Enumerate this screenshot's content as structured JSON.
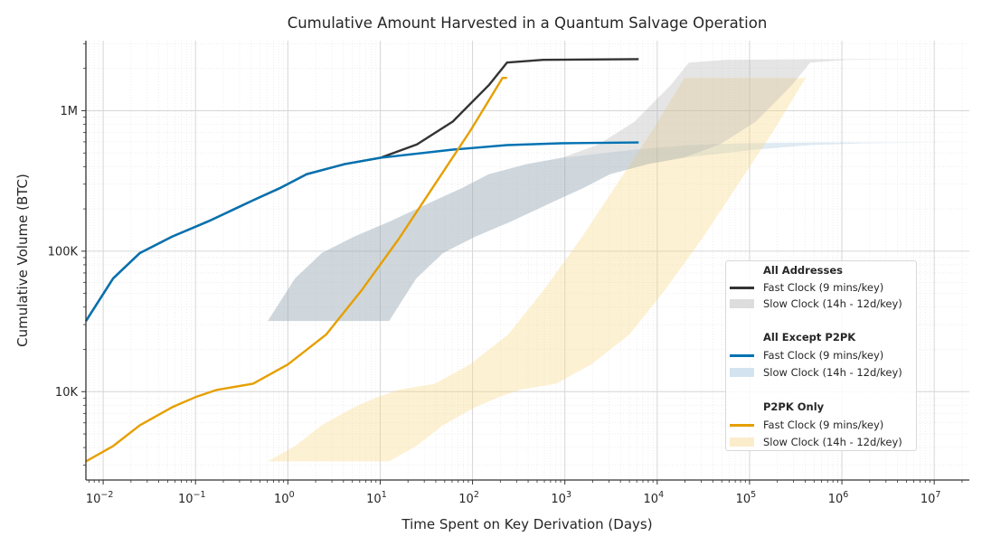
{
  "chart_data": {
    "type": "line",
    "title": "Cumulative Amount Harvested in a Quantum Salvage Operation",
    "xlabel": "Time Spent on Key Derivation (Days)",
    "ylabel": "Cumulative Volume (BTC)",
    "xscale": "log",
    "yscale": "log",
    "xlim": [
      0.0065,
      24000000
    ],
    "ylim": [
      2350,
      3150000
    ],
    "x_ticks": [
      {
        "value": 0.01,
        "base": "10",
        "exp": "−2"
      },
      {
        "value": 0.1,
        "base": "10",
        "exp": "−1"
      },
      {
        "value": 1,
        "base": "10",
        "exp": "0"
      },
      {
        "value": 10,
        "base": "10",
        "exp": "1"
      },
      {
        "value": 100,
        "base": "10",
        "exp": "2"
      },
      {
        "value": 1000,
        "base": "10",
        "exp": "3"
      },
      {
        "value": 10000,
        "base": "10",
        "exp": "4"
      },
      {
        "value": 100000,
        "base": "10",
        "exp": "5"
      },
      {
        "value": 1000000,
        "base": "10",
        "exp": "6"
      },
      {
        "value": 10000000,
        "base": "10",
        "exp": "7"
      }
    ],
    "y_ticks": [
      {
        "value": 10000,
        "label": "10K"
      },
      {
        "value": 100000,
        "label": "100K"
      },
      {
        "value": 1000000,
        "label": "1M"
      }
    ],
    "grid": true,
    "legend_position": "center-right",
    "slow_clock_time_factors": [
      93.3,
      1920
    ],
    "series": [
      {
        "group": "All Addresses",
        "name": "Fast Clock (9 mins/key)",
        "band_name": "Slow Clock (14h - 12d/key)",
        "color": "#333333",
        "band_color": "rgba(175,175,175,0.32)",
        "band_legend_color": "#dddddd",
        "x": [
          0.0065,
          0.0128,
          0.025,
          0.056,
          0.137,
          0.42,
          0.84,
          1.6,
          4.1,
          10,
          25,
          61,
          150,
          236,
          582,
          6300
        ],
        "y": [
          31800,
          64000,
          97000,
          127000,
          163000,
          230000,
          283000,
          353000,
          416000,
          462000,
          576000,
          837000,
          1520000,
          2200000,
          2300000,
          2330000
        ]
      },
      {
        "group": "All Except P2PK",
        "name": "Fast Clock (9 mins/key)",
        "band_name": "Slow Clock (14h - 12d/key)",
        "color": "#0072b2",
        "band_color": "rgba(110,160,200,0.22)",
        "band_legend_color": "#d3e4f0",
        "x": [
          0.0065,
          0.0128,
          0.025,
          0.056,
          0.137,
          0.42,
          0.84,
          1.6,
          4.1,
          10,
          61,
          236,
          910,
          6300
        ],
        "y": [
          31800,
          64000,
          97000,
          127000,
          163000,
          230000,
          283000,
          353000,
          416000,
          462000,
          528000,
          569000,
          586000,
          594000
        ]
      },
      {
        "group": "P2PK Only",
        "name": "Fast Clock (9 mins/key)",
        "band_name": "Slow Clock (14h - 12d/key)",
        "color": "#e69f00",
        "band_color": "rgba(248,215,130,0.35)",
        "band_legend_color": "#fbeccb",
        "x": [
          0.0065,
          0.0128,
          0.025,
          0.056,
          0.1,
          0.17,
          0.42,
          1.0,
          2.6,
          6.4,
          15.7,
          38.7,
          95,
          211,
          236
        ],
        "y": [
          3190,
          4100,
          5770,
          7760,
          9140,
          10300,
          11400,
          15600,
          25500,
          53500,
          121000,
          296000,
          722000,
          1710000,
          1710000
        ]
      }
    ]
  }
}
